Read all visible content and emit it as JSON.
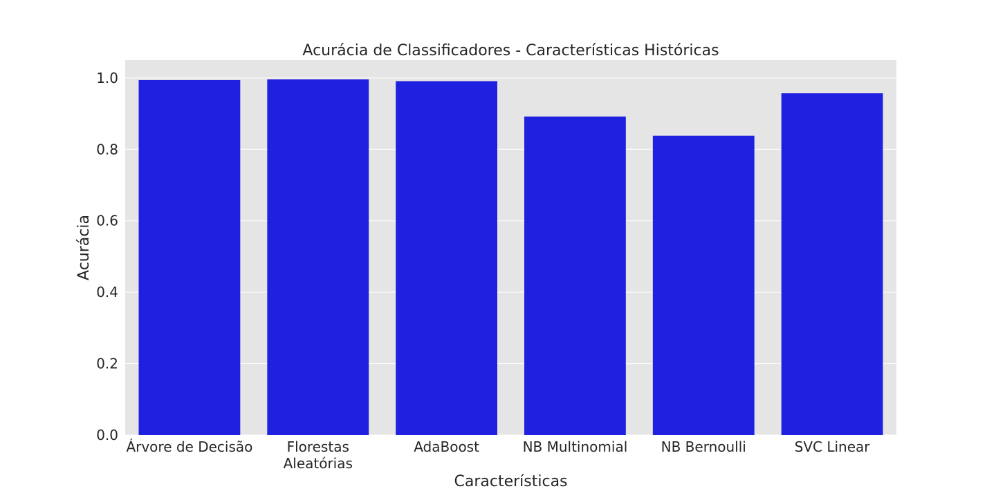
{
  "chart_data": {
    "type": "bar",
    "title": "Acurácia de Classificadores - Características Históricas",
    "xlabel": "Características",
    "ylabel": "Acurácia",
    "categories": [
      [
        "Árvore de Decisão"
      ],
      [
        "Florestas",
        "Aleatórias"
      ],
      [
        "AdaBoost"
      ],
      [
        "NB Multinomial"
      ],
      [
        "NB Bernoulli"
      ],
      [
        "SVC Linear"
      ]
    ],
    "values": [
      0.994,
      0.996,
      0.991,
      0.892,
      0.838,
      0.957
    ],
    "ylim": [
      0,
      1.05
    ],
    "yticks": [
      0.0,
      0.2,
      0.4,
      0.6,
      0.8,
      1.0
    ],
    "ytick_labels": [
      "0.0",
      "0.2",
      "0.4",
      "0.6",
      "0.8",
      "1.0"
    ],
    "grid": true,
    "colors": {
      "bar": "#2020e0",
      "plot_background": "#e5e5e5",
      "gridline": "#ffffff",
      "text": "#262626"
    }
  }
}
